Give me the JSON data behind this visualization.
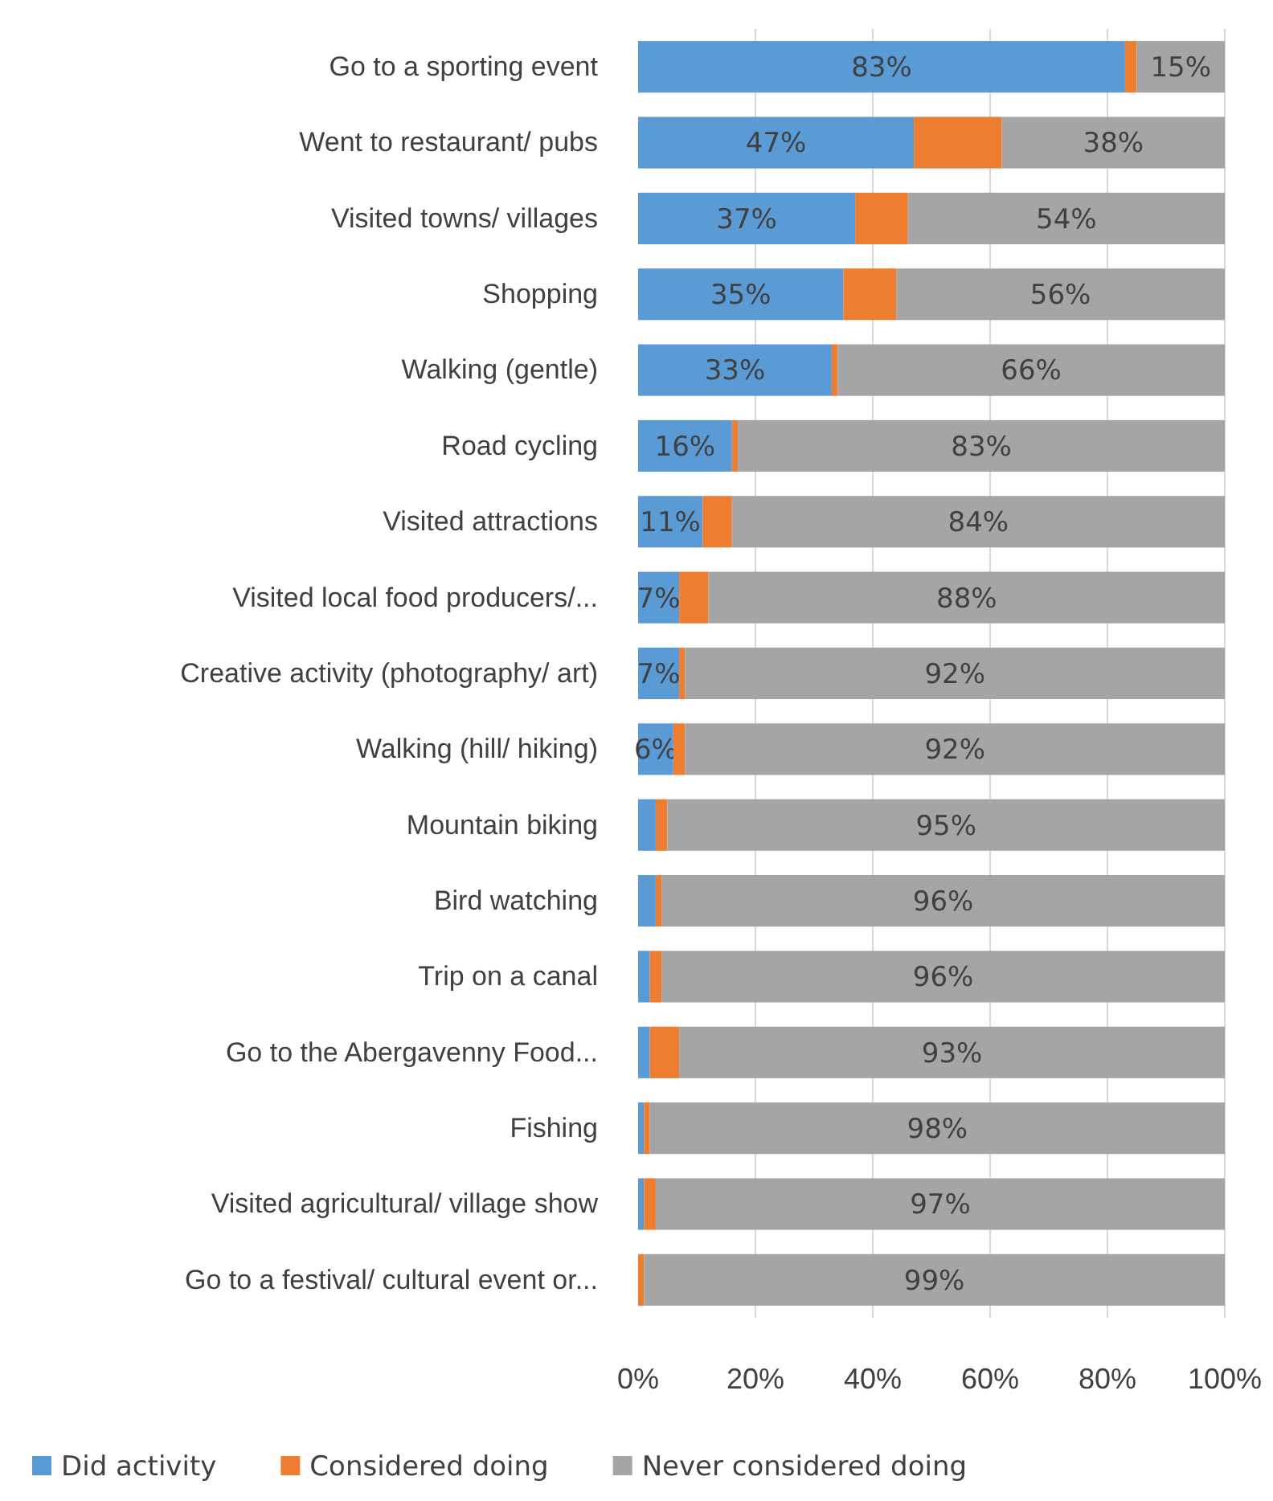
{
  "chart_data": {
    "type": "bar",
    "orientation": "horizontal",
    "stacked": true,
    "categories": [
      "Go to a sporting event",
      "Went to restaurant/ pubs",
      "Visited towns/ villages",
      "Shopping",
      "Walking (gentle)",
      "Road cycling",
      "Visited attractions",
      "Visited local food producers/...",
      "Creative activity (photography/ art)",
      "Walking (hill/ hiking)",
      "Mountain biking",
      "Bird watching",
      "Trip on a canal",
      "Go to the Abergavenny Food...",
      "Fishing",
      "Visited agricultural/ village show",
      "Go to a festival/ cultural event or..."
    ],
    "series": [
      {
        "name": "Did activity",
        "color": "#5b9bd5",
        "values": [
          83,
          47,
          37,
          35,
          33,
          16,
          11,
          7,
          7,
          6,
          3,
          3,
          2,
          2,
          1,
          1,
          0
        ],
        "value_labels": [
          "83%",
          "47%",
          "37%",
          "35%",
          "33%",
          "16%",
          "11%",
          "7%",
          "7%",
          "6%",
          null,
          null,
          null,
          null,
          null,
          null,
          null
        ]
      },
      {
        "name": "Considered doing",
        "color": "#ed7d31",
        "values": [
          2,
          15,
          9,
          9,
          1,
          1,
          5,
          5,
          1,
          2,
          2,
          1,
          2,
          5,
          1,
          2,
          1
        ]
      },
      {
        "name": "Never considered doing",
        "color": "#a5a5a5",
        "values": [
          15,
          38,
          54,
          56,
          66,
          83,
          84,
          88,
          92,
          92,
          95,
          96,
          96,
          93,
          98,
          97,
          99
        ],
        "value_labels": [
          "15%",
          "38%",
          "54%",
          "56%",
          "66%",
          "83%",
          "84%",
          "88%",
          "92%",
          "92%",
          "95%",
          "96%",
          "96%",
          "93%",
          "98%",
          "97%",
          "99%"
        ]
      }
    ],
    "xlim": [
      0,
      100
    ],
    "xticks": [
      {
        "value": 0,
        "label": "0%"
      },
      {
        "value": 20,
        "label": "20%"
      },
      {
        "value": 40,
        "label": "40%"
      },
      {
        "value": 60,
        "label": "60%"
      },
      {
        "value": 80,
        "label": "80%"
      },
      {
        "value": 100,
        "label": "100%"
      }
    ],
    "grid": "x",
    "legend": "bottom"
  }
}
